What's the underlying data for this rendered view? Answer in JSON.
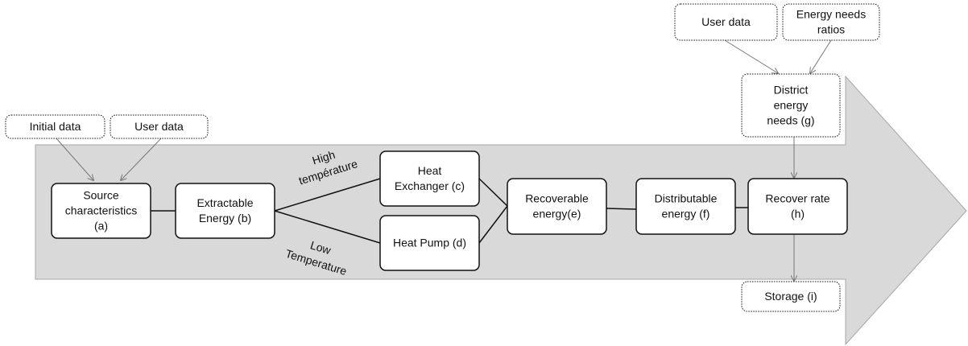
{
  "nodes": [
    {
      "id": "a",
      "lines": [
        "Source",
        "characteristics",
        "(a)"
      ]
    },
    {
      "id": "b",
      "lines": [
        "Extractable",
        "Energy (b)"
      ]
    },
    {
      "id": "c",
      "lines": [
        "Heat",
        "Exchanger (c)"
      ]
    },
    {
      "id": "d",
      "lines": [
        "Heat Pump (d)"
      ]
    },
    {
      "id": "e",
      "lines": [
        "Recoverable",
        "energy(e)"
      ]
    },
    {
      "id": "f",
      "lines": [
        "Distributable",
        "energy (f)"
      ]
    },
    {
      "id": "h",
      "lines": [
        "Recover rate",
        "(h)"
      ]
    },
    {
      "id": "g",
      "lines": [
        "District",
        "energy",
        "needs (g)"
      ]
    },
    {
      "id": "i",
      "lines": [
        "Storage (i)"
      ]
    }
  ],
  "inputs": [
    {
      "id": "initial",
      "lines": [
        "Initial data"
      ]
    },
    {
      "id": "user1",
      "lines": [
        "User data"
      ]
    },
    {
      "id": "user2",
      "lines": [
        "User data"
      ]
    },
    {
      "id": "ratios",
      "lines": [
        "Energy needs",
        "ratios"
      ]
    }
  ],
  "edge_labels": [
    {
      "lines": [
        "High",
        "température"
      ]
    },
    {
      "lines": [
        "Low",
        "Temperature"
      ]
    }
  ]
}
